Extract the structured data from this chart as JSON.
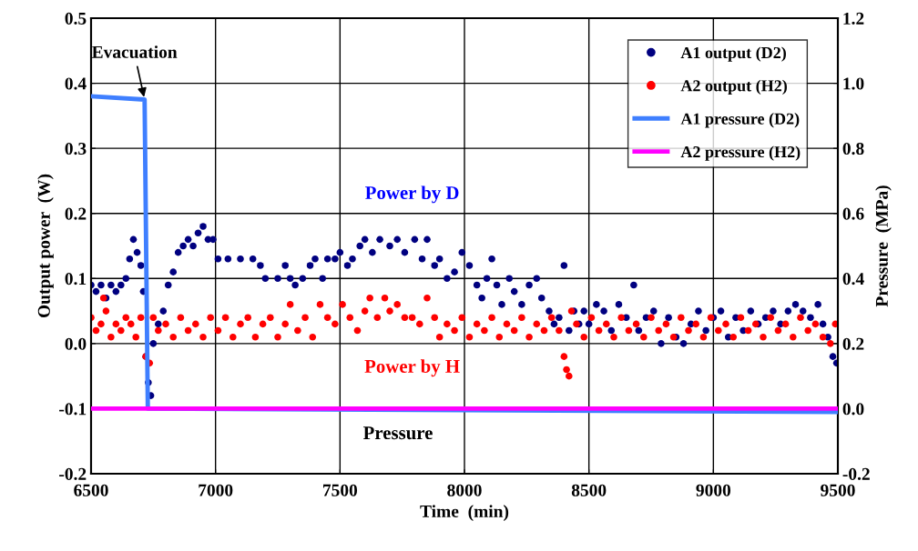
{
  "chart_data": {
    "type": "scatter",
    "xlabel": "Time  (min)",
    "ylabel": "Output power  (W)",
    "y2label": "Pressure  (MPa)",
    "xlim": [
      6500,
      9500
    ],
    "xticks": [
      6500,
      7000,
      7500,
      8000,
      8500,
      9000,
      9500
    ],
    "ylim": [
      -0.2,
      0.5
    ],
    "yticks": [
      {
        "value": -0.2,
        "label": "-0.2"
      },
      {
        "value": -0.1,
        "label": "-0.1"
      },
      {
        "value": 0,
        "label": "0.0"
      },
      {
        "value": 0.1,
        "label": "0.1"
      },
      {
        "value": 0.2,
        "label": "0.2"
      },
      {
        "value": 0.3,
        "label": "0.3"
      },
      {
        "value": 0.4,
        "label": "0.4"
      },
      {
        "value": 0.5,
        "label": "0.5"
      }
    ],
    "y2lim": [
      -0.2,
      1.2
    ],
    "y2ticks": [
      {
        "value": -0.2,
        "label": "-0.2"
      },
      {
        "value": 0,
        "label": "0.0"
      },
      {
        "value": 0.2,
        "label": "0.2"
      },
      {
        "value": 0.4,
        "label": "0.4"
      },
      {
        "value": 0.6,
        "label": "0.6"
      },
      {
        "value": 0.8,
        "label": "0.8"
      },
      {
        "value": 1.0,
        "label": "1.0"
      },
      {
        "value": 1.2,
        "label": "1.2"
      }
    ],
    "grid": true,
    "legend": "top right",
    "marker": "circle",
    "series": [
      {
        "name": "A1 output (D2)",
        "type": "scatter",
        "color": "#000080",
        "x": [
          6500,
          6520,
          6540,
          6560,
          6580,
          6600,
          6620,
          6640,
          6655,
          6670,
          6685,
          6700,
          6710,
          6720,
          6730,
          6740,
          6750,
          6770,
          6790,
          6810,
          6830,
          6850,
          6870,
          6890,
          6910,
          6930,
          6950,
          6970,
          6990,
          7010,
          7050,
          7100,
          7150,
          7180,
          7200,
          7250,
          7280,
          7300,
          7320,
          7350,
          7380,
          7400,
          7430,
          7450,
          7480,
          7500,
          7530,
          7550,
          7580,
          7600,
          7630,
          7660,
          7700,
          7730,
          7760,
          7800,
          7830,
          7850,
          7880,
          7900,
          7930,
          7960,
          7990,
          8020,
          8050,
          8070,
          8090,
          8110,
          8130,
          8150,
          8180,
          8200,
          8230,
          8260,
          8290,
          8310,
          8340,
          8360,
          8380,
          8400,
          8420,
          8440,
          8460,
          8480,
          8500,
          8530,
          8560,
          8590,
          8620,
          8650,
          8680,
          8700,
          8730,
          8760,
          8790,
          8820,
          8850,
          8880,
          8910,
          8940,
          8970,
          9000,
          9030,
          9060,
          9090,
          9120,
          9150,
          9180,
          9210,
          9240,
          9270,
          9300,
          9330,
          9360,
          9390,
          9420,
          9440,
          9460,
          9480,
          9495
        ],
        "values": [
          0.09,
          0.08,
          0.09,
          0.07,
          0.09,
          0.08,
          0.09,
          0.1,
          0.13,
          0.16,
          0.14,
          0.12,
          0.08,
          -0.02,
          -0.06,
          -0.08,
          0.0,
          0.03,
          0.05,
          0.09,
          0.11,
          0.14,
          0.15,
          0.16,
          0.15,
          0.17,
          0.18,
          0.16,
          0.16,
          0.13,
          0.13,
          0.13,
          0.13,
          0.12,
          0.1,
          0.1,
          0.12,
          0.1,
          0.09,
          0.1,
          0.12,
          0.13,
          0.1,
          0.13,
          0.13,
          0.14,
          0.12,
          0.13,
          0.15,
          0.16,
          0.14,
          0.16,
          0.15,
          0.16,
          0.14,
          0.16,
          0.13,
          0.16,
          0.12,
          0.13,
          0.1,
          0.11,
          0.14,
          0.12,
          0.09,
          0.07,
          0.1,
          0.13,
          0.09,
          0.06,
          0.1,
          0.08,
          0.06,
          0.09,
          0.1,
          0.07,
          0.05,
          0.03,
          0.04,
          0.12,
          0.02,
          0.05,
          0.03,
          0.05,
          0.03,
          0.06,
          0.05,
          0.02,
          0.06,
          0.04,
          0.09,
          0.02,
          0.04,
          0.05,
          0.0,
          0.04,
          0.01,
          0.0,
          0.03,
          0.05,
          0.02,
          0.04,
          0.05,
          0.01,
          0.04,
          0.02,
          0.05,
          0.03,
          0.04,
          0.05,
          0.03,
          0.05,
          0.06,
          0.05,
          0.04,
          0.06,
          0.03,
          0.01,
          -0.02,
          -0.03
        ]
      },
      {
        "name": "A2 output (H2)",
        "type": "scatter",
        "color": "#ff0000",
        "x": [
          6500,
          6520,
          6540,
          6550,
          6560,
          6580,
          6600,
          6620,
          6640,
          6660,
          6680,
          6700,
          6720,
          6735,
          6750,
          6770,
          6800,
          6830,
          6860,
          6890,
          6920,
          6950,
          6980,
          7010,
          7040,
          7070,
          7100,
          7130,
          7160,
          7190,
          7220,
          7250,
          7280,
          7300,
          7330,
          7360,
          7390,
          7420,
          7450,
          7480,
          7510,
          7540,
          7570,
          7600,
          7620,
          7650,
          7680,
          7700,
          7730,
          7760,
          7790,
          7820,
          7850,
          7880,
          7900,
          7930,
          7960,
          7990,
          8020,
          8050,
          8080,
          8110,
          8140,
          8170,
          8200,
          8230,
          8260,
          8290,
          8320,
          8350,
          8380,
          8400,
          8410,
          8420,
          8430,
          8450,
          8480,
          8510,
          8540,
          8570,
          8600,
          8630,
          8660,
          8690,
          8720,
          8750,
          8780,
          8810,
          8840,
          8870,
          8900,
          8930,
          8960,
          8990,
          9020,
          9050,
          9080,
          9110,
          9140,
          9170,
          9200,
          9230,
          9260,
          9290,
          9320,
          9350,
          9380,
          9410,
          9440,
          9470,
          9490
        ],
        "values": [
          0.04,
          0.02,
          0.03,
          0.07,
          0.05,
          0.01,
          0.03,
          0.02,
          0.04,
          0.03,
          0.01,
          0.04,
          -0.02,
          -0.03,
          0.04,
          0.02,
          0.03,
          0.01,
          0.04,
          0.02,
          0.03,
          0.01,
          0.04,
          0.02,
          0.04,
          0.01,
          0.03,
          0.04,
          0.01,
          0.03,
          0.04,
          0.01,
          0.03,
          0.06,
          0.02,
          0.04,
          0.01,
          0.06,
          0.04,
          0.03,
          0.06,
          0.04,
          0.02,
          0.05,
          0.07,
          0.04,
          0.07,
          0.05,
          0.06,
          0.04,
          0.04,
          0.03,
          0.07,
          0.04,
          0.01,
          0.03,
          0.02,
          0.04,
          0.01,
          0.03,
          0.02,
          0.04,
          0.01,
          0.03,
          0.02,
          0.04,
          0.01,
          0.03,
          0.02,
          0.04,
          0.02,
          -0.02,
          -0.04,
          -0.05,
          0.05,
          0.03,
          0.01,
          0.04,
          0.02,
          0.03,
          0.01,
          0.04,
          0.02,
          0.03,
          0.01,
          0.04,
          0.02,
          0.03,
          0.01,
          0.04,
          0.02,
          0.03,
          0.01,
          0.04,
          0.02,
          0.03,
          0.01,
          0.04,
          0.02,
          0.03,
          0.01,
          0.04,
          0.02,
          0.03,
          0.01,
          0.04,
          0.02,
          0.03,
          0.01,
          0.0,
          0.03
        ]
      },
      {
        "name": "A1 pressure (D2)",
        "type": "line",
        "axis": "y2",
        "color": "#3f7fff",
        "marker": "none",
        "line_style": "solid",
        "x": [
          6500,
          6715,
          6728,
          9500
        ],
        "values": [
          0.96,
          0.95,
          0.0,
          -0.01
        ]
      },
      {
        "name": "A2 pressure (H2)",
        "type": "line",
        "axis": "y2",
        "color": "#ff00ff",
        "marker": "none",
        "line_style": "solid",
        "x": [
          6500,
          9500
        ],
        "values": [
          0.0,
          0.0
        ]
      }
    ],
    "annotations": [
      {
        "text": "Evacuation",
        "x": 6715,
        "y": 0.375
      },
      "Power by D",
      "Power by H",
      "Pressure"
    ]
  }
}
